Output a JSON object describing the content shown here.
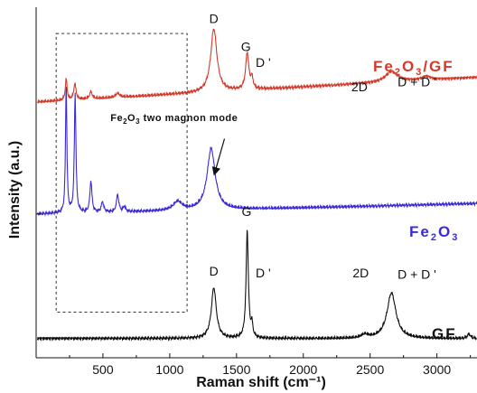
{
  "chart_data": {
    "type": "line",
    "xlabel": "Raman shift (cm⁻¹)",
    "ylabel": "Intensity (a.u.)",
    "xlim": [
      0,
      3300
    ],
    "ylim": [
      0,
      10
    ],
    "x_ticks": [
      "500",
      "1000",
      "1500",
      "2000",
      "2500",
      "3000"
    ],
    "x_tick_values": [
      500,
      1000,
      1500,
      2000,
      2500,
      3000
    ],
    "y_ticks_labeled": false,
    "grid": false,
    "series": [
      {
        "color": "#d43a2a",
        "label_main": "Fe",
        "label_sub": "2",
        "label_mid": "O",
        "label_sub2": "3",
        "label_tail": "/GF",
        "baseline": 7.3,
        "drift": 0.7,
        "peaks": [
          {
            "x": 225,
            "h": 0.6,
            "w": 8
          },
          {
            "x": 290,
            "h": 0.45,
            "w": 10
          },
          {
            "x": 410,
            "h": 0.2,
            "w": 12
          },
          {
            "x": 610,
            "h": 0.12,
            "w": 18
          },
          {
            "x": 1330,
            "h": 1.8,
            "w": 28
          },
          {
            "x": 1580,
            "h": 1.05,
            "w": 14
          },
          {
            "x": 1615,
            "h": 0.3,
            "w": 10
          },
          {
            "x": 2660,
            "h": 0.3,
            "w": 55
          },
          {
            "x": 2920,
            "h": 0.1,
            "w": 40
          }
        ],
        "peak_labels": [
          {
            "text": "D",
            "x": 1330,
            "y": 9.55
          },
          {
            "text": "G",
            "x": 1570,
            "y": 8.75
          },
          {
            "text": "D '",
            "x": 1700,
            "y": 8.3
          },
          {
            "text": "2D",
            "x": 2420,
            "y": 7.6
          },
          {
            "text": "D + D '",
            "x": 2850,
            "y": 7.75
          }
        ]
      },
      {
        "color": "#3b2ad6",
        "label_main": "Fe",
        "label_sub": "2",
        "label_mid": "O",
        "label_sub2": "3",
        "label_tail": "",
        "baseline": 4.1,
        "drift": 0.3,
        "peaks": [
          {
            "x": 225,
            "h": 3.7,
            "w": 6
          },
          {
            "x": 292,
            "h": 3.4,
            "w": 7
          },
          {
            "x": 410,
            "h": 0.9,
            "w": 9
          },
          {
            "x": 497,
            "h": 0.3,
            "w": 10
          },
          {
            "x": 610,
            "h": 0.5,
            "w": 10
          },
          {
            "x": 660,
            "h": 0.15,
            "w": 10
          },
          {
            "x": 1060,
            "h": 0.25,
            "w": 40
          },
          {
            "x": 1310,
            "h": 1.75,
            "w": 36
          }
        ],
        "annotation": {
          "text_main": "Fe",
          "text_sub": "2",
          "text_mid": "O",
          "text_sub2": "3",
          "text_tail": " two magnon mode",
          "x": 1300,
          "y": 6.75
        }
      },
      {
        "color": "#111111",
        "label_main": "GF",
        "baseline": 0.55,
        "drift": 0.0,
        "peaks": [
          {
            "x": 1330,
            "h": 1.45,
            "w": 22
          },
          {
            "x": 1580,
            "h": 3.1,
            "w": 10
          },
          {
            "x": 1615,
            "h": 0.35,
            "w": 8
          },
          {
            "x": 2460,
            "h": 0.1,
            "w": 30
          },
          {
            "x": 2660,
            "h": 1.3,
            "w": 40
          },
          {
            "x": 3240,
            "h": 0.12,
            "w": 15
          }
        ],
        "peak_labels": [
          {
            "text": "D",
            "x": 1330,
            "y": 2.35
          },
          {
            "text": "G",
            "x": 1575,
            "y": 4.05
          },
          {
            "text": "D '",
            "x": 1700,
            "y": 2.3
          },
          {
            "text": "2D",
            "x": 2430,
            "y": 2.3
          },
          {
            "text": "D + D '",
            "x": 2850,
            "y": 2.25
          }
        ]
      }
    ],
    "highlight_box": {
      "style": "dashed",
      "x": [
        150,
        1130
      ],
      "y": [
        1.3,
        9.25
      ]
    }
  }
}
